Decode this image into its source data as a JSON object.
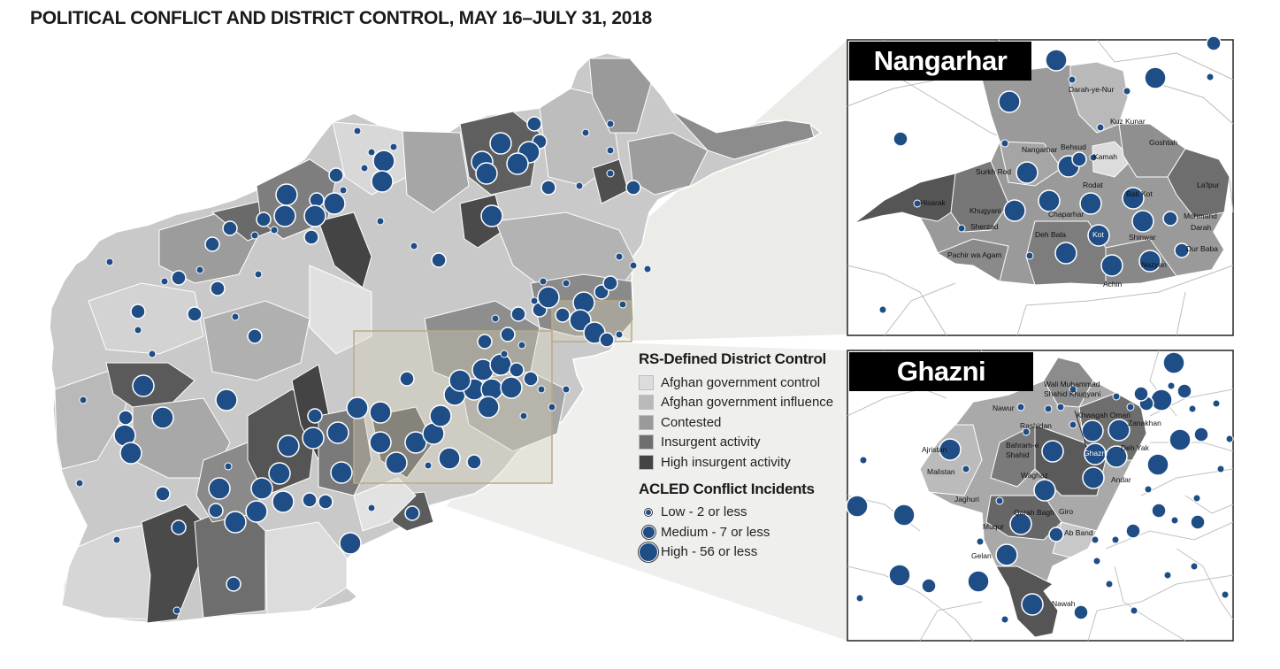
{
  "title": "POLITICAL CONFLICT AND DISTRICT CONTROL, MAY 16–JULY 31, 2018",
  "legend": {
    "control_title": "RS-Defined District Control",
    "control_items": [
      {
        "label": "Afghan government control",
        "color": "#dcdcdc"
      },
      {
        "label": "Afghan government influence",
        "color": "#b9b9b9"
      },
      {
        "label": "Contested",
        "color": "#9a9a9a"
      },
      {
        "label": "Insurgent activity",
        "color": "#6e6e6e"
      },
      {
        "label": "High insurgent activity",
        "color": "#444444"
      }
    ],
    "incidents_title": "ACLED Conflict Incidents",
    "incident_items": [
      {
        "label": "Low - 2 or less",
        "size": "low"
      },
      {
        "label": "Medium - 7 or less",
        "size": "medium"
      },
      {
        "label": "High - 56 or less",
        "size": "high"
      }
    ],
    "dot_color": "#1f4d86"
  },
  "insets": {
    "nangarhar": {
      "label": "Nangarhar",
      "districts": [
        "Darah-ye-Nur",
        "Kuz Kunar",
        "Goshtah",
        "Nangarhar",
        "Behsud",
        "Kamah",
        "Surkh Rod",
        "Rodat",
        "Bati Kot",
        "La'lpur",
        "Hisarak",
        "Khugyani",
        "Chaparhar",
        "Mohmand Darah",
        "Sherzad",
        "Deh Bala",
        "Kot",
        "Shinwar",
        "Dur Baba",
        "Pachir wa Agam",
        "Nazyan",
        "Achin"
      ]
    },
    "ghazni": {
      "label": "Ghazni",
      "districts": [
        "Wali Muhammad Shahid Khugyani",
        "Nawur",
        "Khwagah Omari",
        "Rashidan",
        "Zanakhan",
        "Ajristan",
        "Bahram-e Shahid",
        "Ghazni",
        "Deh Yak",
        "Malistan",
        "Waghaz",
        "Andar",
        "Jaghuri",
        "Qarah Bagh",
        "Giro",
        "Muqur",
        "Ab Band",
        "Gelan",
        "Nawah"
      ]
    }
  }
}
